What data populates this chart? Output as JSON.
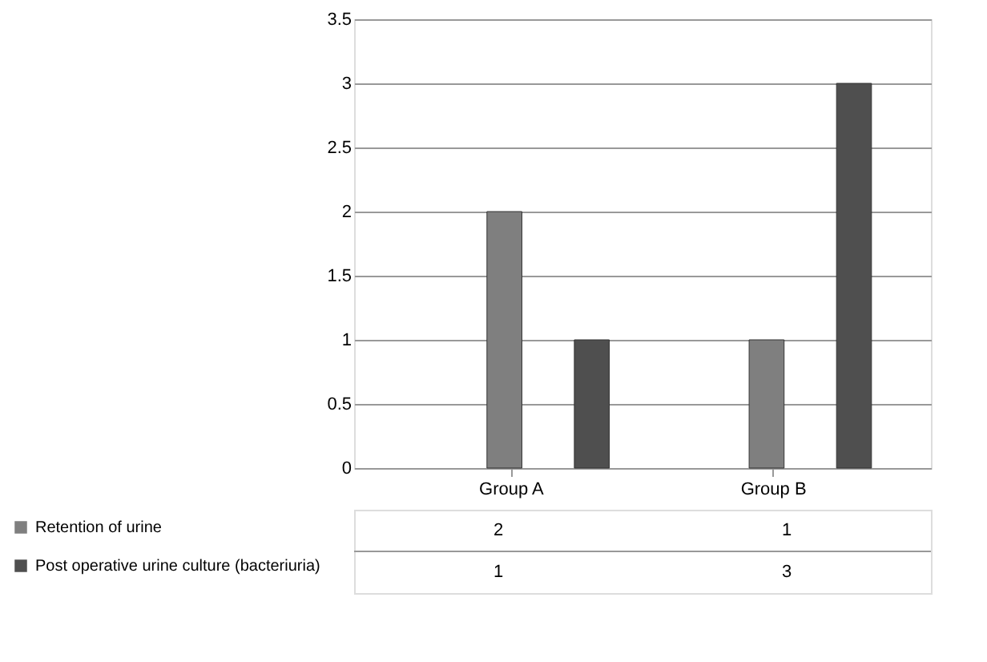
{
  "chart_data": {
    "type": "bar",
    "categories": [
      "Group A",
      "Group B"
    ],
    "series": [
      {
        "name": "Retention of urine",
        "color": "#7f7f7f",
        "values": [
          2,
          1
        ]
      },
      {
        "name": "Post operative urine culture (bacteriuria)",
        "color": "#4f4f4f",
        "values": [
          1,
          3
        ]
      }
    ],
    "ylim": [
      0,
      3.5
    ],
    "yticks": [
      0,
      0.5,
      1,
      1.5,
      2,
      2.5,
      3,
      3.5
    ],
    "grid": "y",
    "data_labels": true,
    "legend": "bottom left"
  }
}
